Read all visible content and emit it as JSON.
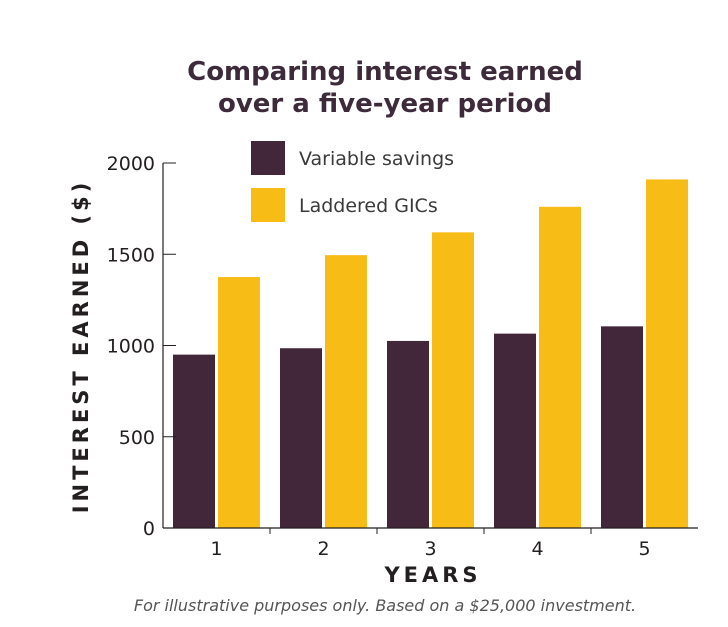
{
  "chart_data": {
    "type": "bar",
    "title_lines": [
      "Comparing interest earned",
      "over a five-year period"
    ],
    "xlabel": "YEARS",
    "ylabel": "INTEREST EARNED ($)",
    "categories": [
      "1",
      "2",
      "3",
      "4",
      "5"
    ],
    "ylim": [
      0,
      2000
    ],
    "yticks": [
      0,
      500,
      1000,
      1500,
      2000
    ],
    "legend_position": "top",
    "grid": false,
    "series": [
      {
        "name": "Variable savings",
        "color": "#42263a",
        "values": [
          950,
          985,
          1025,
          1065,
          1105
        ]
      },
      {
        "name": "Laddered GICs",
        "color": "#f8bc16",
        "values": [
          1375,
          1495,
          1620,
          1760,
          1910
        ]
      }
    ],
    "footnote": "For illustrative purposes only. Based on a $25,000 investment."
  }
}
